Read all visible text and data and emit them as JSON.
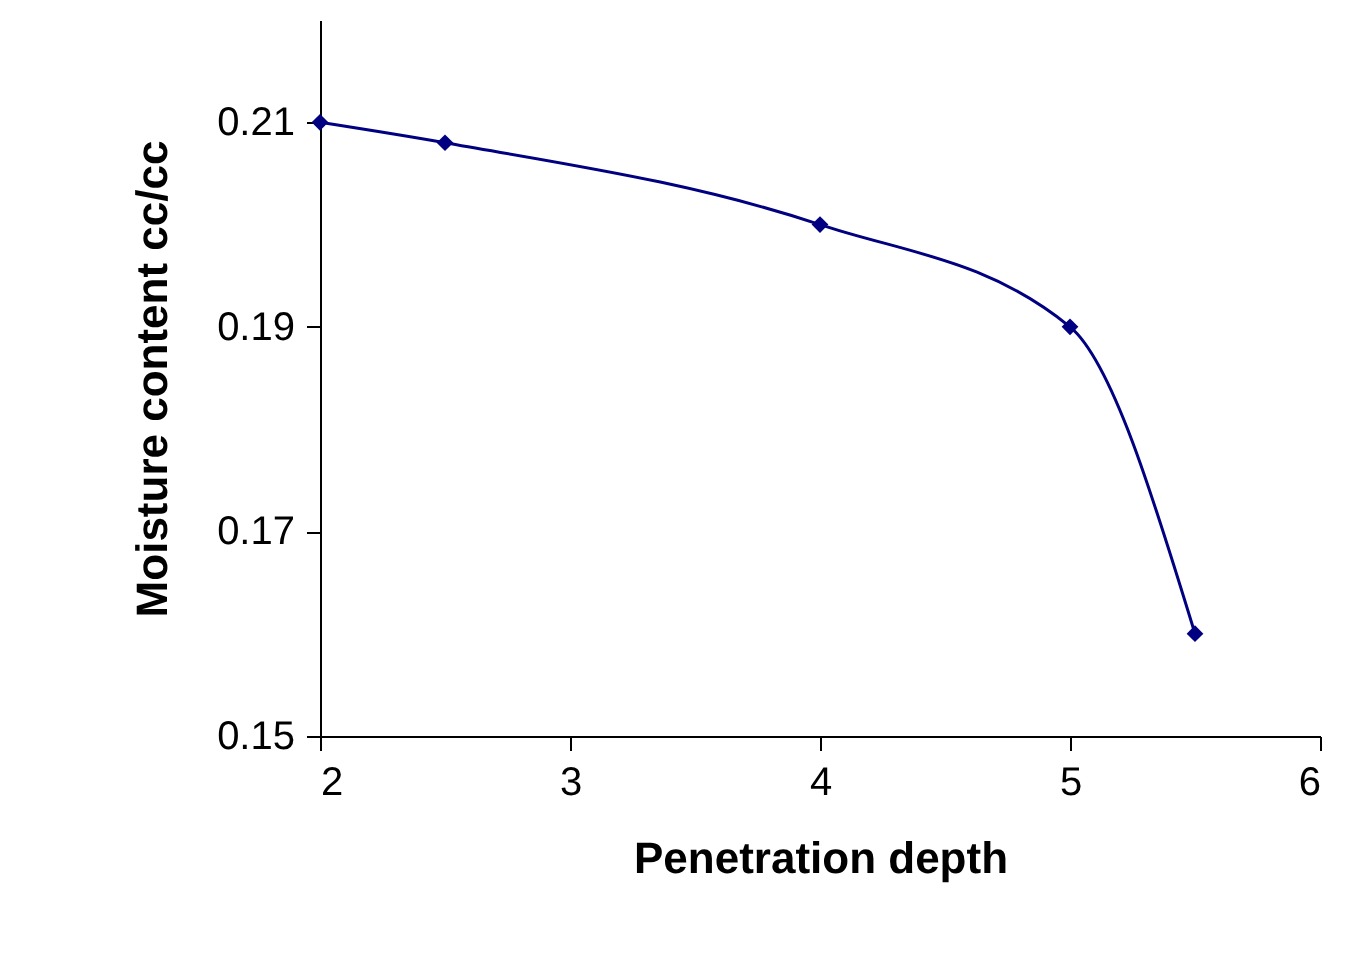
{
  "chart_data": {
    "type": "line",
    "xlabel": "Penetration depth",
    "ylabel": "Moisture content cc/cc",
    "x": [
      2,
      2.5,
      4,
      5,
      5.5
    ],
    "series": [
      {
        "color": "#000080",
        "values": [
          0.21,
          0.208,
          0.2,
          0.19,
          0.16
        ]
      }
    ],
    "xlim": [
      2,
      6
    ],
    "xticks": [
      2,
      3,
      4,
      5,
      6
    ],
    "ylim": [
      0.15,
      0.22
    ],
    "yticks": [
      0.15,
      0.17,
      0.19,
      0.21
    ],
    "grid": false,
    "marker": "diamond",
    "line_style": "solid"
  }
}
